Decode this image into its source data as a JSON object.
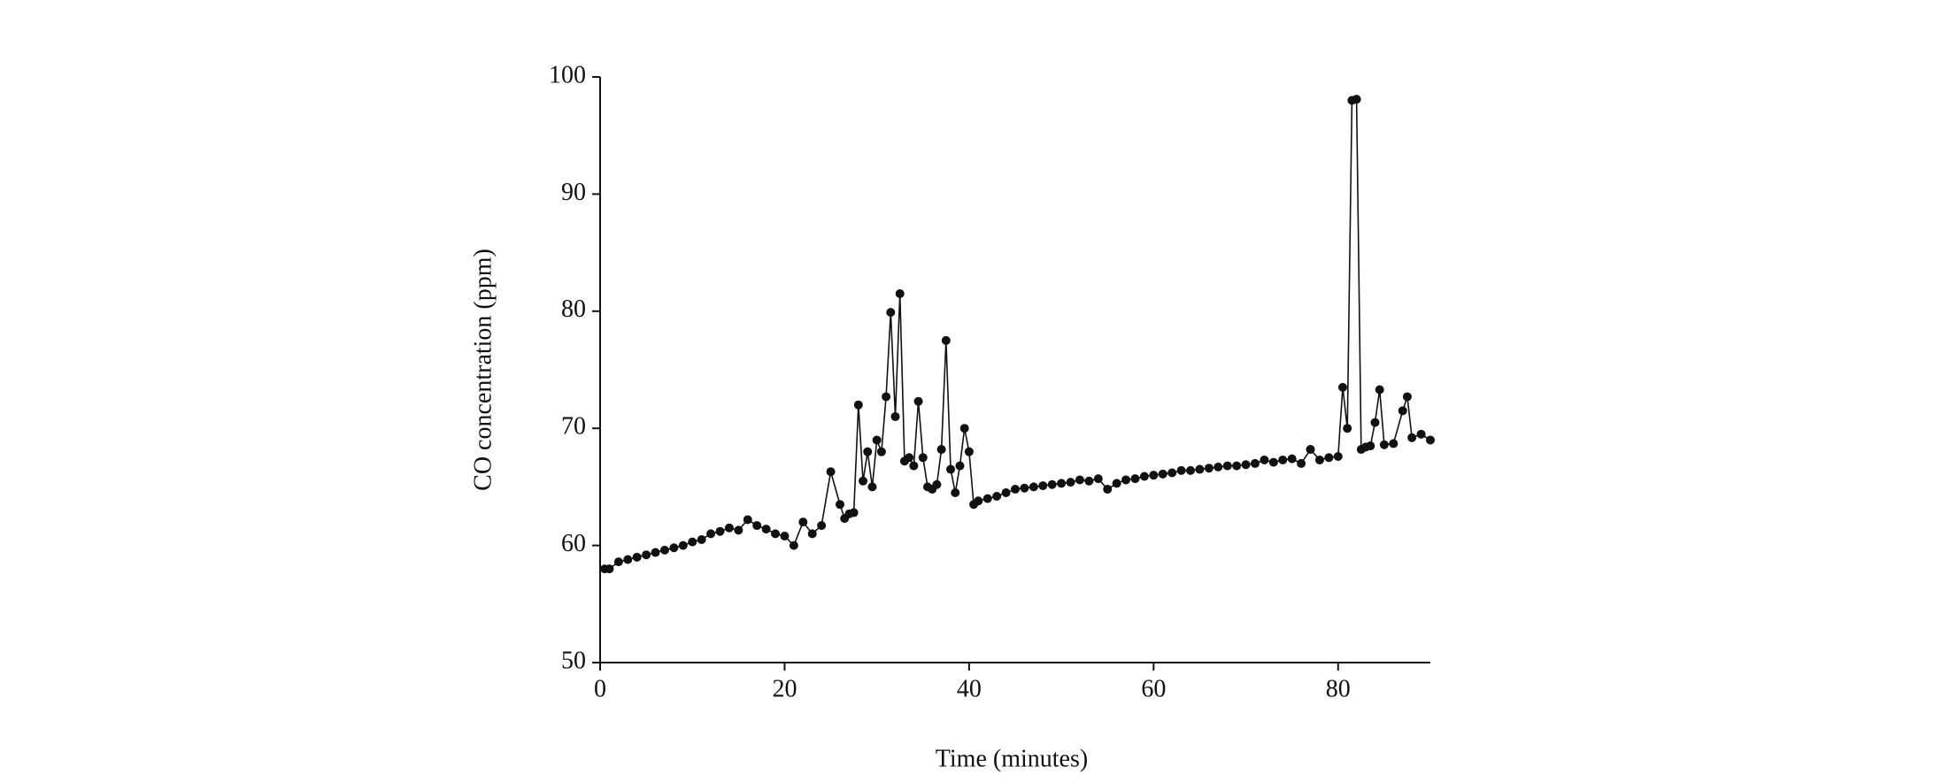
{
  "chart_data": {
    "type": "line",
    "x_label": "Time (minutes)",
    "y_label": "CO concentration (ppm)",
    "x": [
      0.5,
      1,
      2,
      3,
      4,
      5,
      6,
      7,
      8,
      9,
      10,
      11,
      12,
      13,
      14,
      15,
      16,
      17,
      18,
      19,
      20,
      21,
      22,
      23,
      24,
      25,
      26,
      26.5,
      27,
      27.5,
      28,
      28.5,
      29,
      29.5,
      30,
      30.5,
      31,
      31.5,
      32,
      32.5,
      33,
      33.5,
      34,
      34.5,
      35,
      35.5,
      36,
      36.5,
      37,
      37.5,
      38,
      38.5,
      39,
      39.5,
      40,
      40.5,
      41,
      42,
      43,
      44,
      45,
      46,
      47,
      48,
      49,
      50,
      51,
      52,
      53,
      54,
      55,
      56,
      57,
      58,
      59,
      60,
      61,
      62,
      63,
      64,
      65,
      66,
      67,
      68,
      69,
      70,
      71,
      72,
      73,
      74,
      75,
      76,
      77,
      78,
      79,
      80,
      80.5,
      81,
      81.5,
      82,
      82.5,
      83,
      83.5,
      84,
      84.5,
      85,
      86,
      87,
      87.5,
      88,
      89,
      90
    ],
    "values": [
      58,
      58,
      58.6,
      58.8,
      59,
      59.2,
      59.4,
      59.6,
      59.8,
      60,
      60.3,
      60.5,
      61,
      61.2,
      61.5,
      61.3,
      62.2,
      61.7,
      61.4,
      61,
      60.8,
      60,
      62,
      61,
      61.7,
      66.3,
      63.5,
      62.3,
      62.7,
      62.8,
      72,
      65.5,
      68,
      65,
      69,
      68,
      72.7,
      79.9,
      71,
      81.5,
      67.2,
      67.5,
      66.8,
      72.3,
      67.5,
      65,
      64.8,
      65.2,
      68.2,
      77.5,
      66.5,
      64.5,
      66.8,
      70,
      68,
      63.5,
      63.8,
      64,
      64.2,
      64.5,
      64.8,
      64.9,
      65,
      65.1,
      65.2,
      65.3,
      65.4,
      65.6,
      65.5,
      65.7,
      64.8,
      65.3,
      65.6,
      65.7,
      65.9,
      66,
      66.1,
      66.2,
      66.4,
      66.4,
      66.5,
      66.6,
      66.7,
      66.8,
      66.8,
      66.9,
      67,
      67.3,
      67.1,
      67.3,
      67.4,
      67,
      68.2,
      67.3,
      67.5,
      67.6,
      73.5,
      70,
      98,
      98.1,
      68.2,
      68.4,
      68.5,
      70.5,
      73.3,
      68.6,
      68.7,
      71.5,
      72.7,
      69.2,
      69.5,
      69
    ],
    "color": "#111111",
    "xlim": [
      0,
      90
    ],
    "xticks": [
      0,
      20,
      40,
      60,
      80
    ],
    "ylim": [
      50,
      100
    ],
    "yticks": [
      50,
      60,
      70,
      80,
      90,
      100
    ],
    "grid": false
  }
}
